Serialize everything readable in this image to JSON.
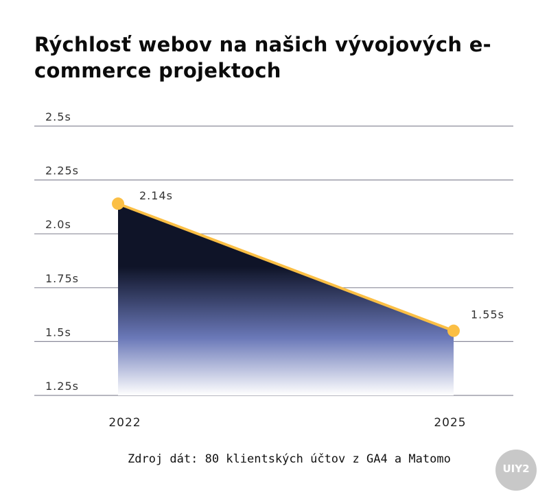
{
  "title": "Rýchlosť webov na našich vývojových e-commerce projektoch",
  "source": "Zdroj dát: 80 klientských účtov z GA4 a Matomo",
  "logo_text": "UIY2",
  "colors": {
    "line": "#fbbf45",
    "fill_top": "#0f1428",
    "fill_mid": "#6a78b8",
    "fill_bottom": "#ffffff",
    "grid": "#8a8a99"
  },
  "chart_data": {
    "type": "area",
    "title": "Rýchlosť webov na našich vývojových e-commerce projektoch",
    "categories": [
      "2022",
      "2025"
    ],
    "values": [
      2.14,
      1.55
    ],
    "data_labels": [
      "2.14s",
      "1.55s"
    ],
    "ylim": [
      1.25,
      2.5
    ],
    "yticks": [
      2.5,
      2.25,
      2.0,
      1.75,
      1.5,
      1.25
    ],
    "ytick_labels": [
      "2.5s",
      "2.25s",
      "2.0s",
      "1.75s",
      "1.5s",
      "1.25s"
    ],
    "grid": true
  }
}
